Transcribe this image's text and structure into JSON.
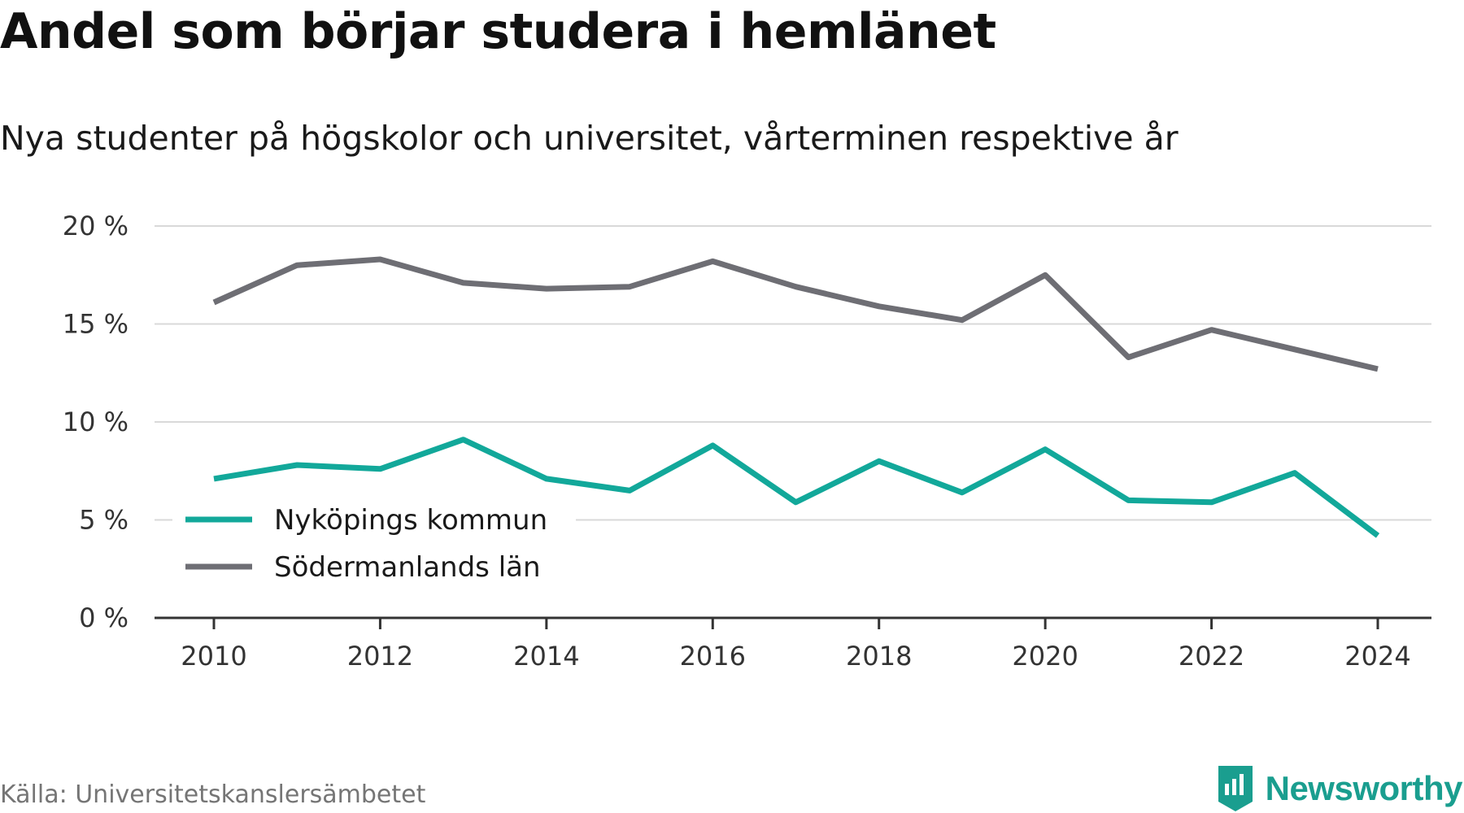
{
  "title": "Andel som börjar studera i hemlänet",
  "subtitle": "Nya studenter på högskolor och universitet, vårterminen respektive år",
  "source": "Källa: Universitetskanslersämbetet",
  "brand": "Newsworthy",
  "colors": {
    "nykoping": "#12a89a",
    "sodermanland": "#6e6e74",
    "grid": "#d9d9d9",
    "axis": "#333333",
    "brand": "#1a9e8f"
  },
  "chart_data": {
    "type": "line",
    "x": [
      2010,
      2011,
      2012,
      2013,
      2014,
      2015,
      2016,
      2017,
      2018,
      2019,
      2020,
      2021,
      2022,
      2023,
      2024
    ],
    "xticks": [
      "2010",
      "2012",
      "2014",
      "2016",
      "2018",
      "2020",
      "2022",
      "2024"
    ],
    "yticks": [
      "0 %",
      "5 %",
      "10 %",
      "15 %",
      "20 %"
    ],
    "ylim": [
      0,
      20
    ],
    "grid": true,
    "legend_position": "bottom-left",
    "series": [
      {
        "name": "Nyköpings kommun",
        "color": "#12a89a",
        "values": [
          7.1,
          7.8,
          7.6,
          9.1,
          7.1,
          6.5,
          8.8,
          5.9,
          8.0,
          6.4,
          8.6,
          6.0,
          5.9,
          7.4,
          4.2
        ]
      },
      {
        "name": "Södermanlands län",
        "color": "#6e6e74",
        "values": [
          16.1,
          18.0,
          18.3,
          17.1,
          16.8,
          16.9,
          18.2,
          16.9,
          15.9,
          15.2,
          17.5,
          13.3,
          14.7,
          13.7,
          12.7
        ]
      }
    ]
  }
}
